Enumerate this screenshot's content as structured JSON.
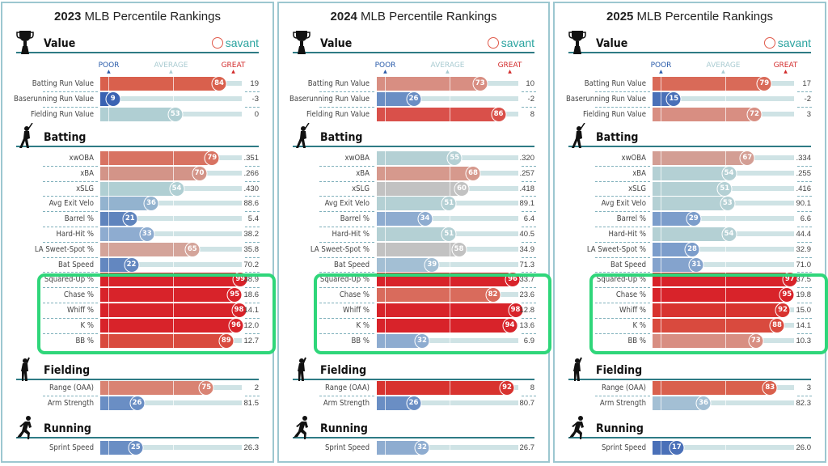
{
  "chart_data": [
    {
      "type": "bar",
      "title_year": "2023",
      "title_rest": "MLB Percentile Rankings",
      "xlim": [
        0,
        100
      ],
      "legend": {
        "poor": "POOR",
        "average": "AVERAGE",
        "great": "GREAT"
      },
      "logo": "savant",
      "sections": [
        {
          "name": "Value",
          "icon": "trophy-icon",
          "rows": [
            {
              "label": "Batting Run Value",
              "percentile": 84,
              "value": "19",
              "color": "#d9604d"
            },
            {
              "label": "Baserunning Run Value",
              "percentile": 9,
              "value": "-3",
              "color": "#3a62b2"
            },
            {
              "label": "Fielding Run Value",
              "percentile": 53,
              "value": "0",
              "color": "#b0cfd3"
            }
          ]
        },
        {
          "name": "Batting",
          "icon": "batter-icon",
          "rows": [
            {
              "label": "xwOBA",
              "percentile": 79,
              "value": ".351",
              "color": "#d87362"
            },
            {
              "label": "xBA",
              "percentile": 70,
              "value": ".266",
              "color": "#d39488"
            },
            {
              "label": "xSLG",
              "percentile": 54,
              "value": ".430",
              "color": "#b0cfd3"
            },
            {
              "label": "Avg Exit Velo",
              "percentile": 36,
              "value": "88.6",
              "color": "#93b3cf"
            },
            {
              "label": "Barrel %",
              "percentile": 21,
              "value": "5.4",
              "color": "#5f84bd"
            },
            {
              "label": "Hard-Hit %",
              "percentile": 33,
              "value": "38.2",
              "color": "#8eacd0"
            },
            {
              "label": "LA Sweet-Spot %",
              "percentile": 65,
              "value": "35.8",
              "color": "#d4a49a"
            },
            {
              "label": "Bat Speed",
              "percentile": 22,
              "value": "70.2",
              "color": "#6387c0"
            },
            {
              "label": "Squared-Up %",
              "percentile": 99,
              "value": "38.9",
              "color": "#d8232a"
            },
            {
              "label": "Chase %",
              "percentile": 95,
              "value": "18.6",
              "color": "#d8232a"
            },
            {
              "label": "Whiff %",
              "percentile": 98,
              "value": "14.1",
              "color": "#d8232a"
            },
            {
              "label": "K %",
              "percentile": 96,
              "value": "12.0",
              "color": "#d8232a"
            },
            {
              "label": "BB %",
              "percentile": 89,
              "value": "12.7",
              "color": "#d94a3e"
            }
          ]
        },
        {
          "name": "Fielding",
          "icon": "fielder-icon",
          "rows": [
            {
              "label": "Range (OAA)",
              "percentile": 75,
              "value": "2",
              "color": "#d98373"
            },
            {
              "label": "Arm Strength",
              "percentile": 26,
              "value": "81.5",
              "color": "#6a8ec4"
            }
          ]
        },
        {
          "name": "Running",
          "icon": "runner-icon",
          "rows": [
            {
              "label": "Sprint Speed",
              "percentile": 25,
              "value": "26.3",
              "color": "#6a8ec4"
            }
          ]
        }
      ]
    },
    {
      "type": "bar",
      "title_year": "2024",
      "title_rest": "MLB Percentile Rankings",
      "xlim": [
        0,
        100
      ],
      "legend": {
        "poor": "POOR",
        "average": "AVERAGE",
        "great": "GREAT"
      },
      "logo": "savant",
      "sections": [
        {
          "name": "Value",
          "icon": "trophy-icon",
          "rows": [
            {
              "label": "Batting Run Value",
              "percentile": 73,
              "value": "10",
              "color": "#d88e82"
            },
            {
              "label": "Baserunning Run Value",
              "percentile": 26,
              "value": "-2",
              "color": "#6a8ec4"
            },
            {
              "label": "Fielding Run Value",
              "percentile": 86,
              "value": "8",
              "color": "#d9504a"
            }
          ]
        },
        {
          "name": "Batting",
          "icon": "batter-icon",
          "rows": [
            {
              "label": "xwOBA",
              "percentile": 55,
              "value": ".320",
              "color": "#b4d0d4"
            },
            {
              "label": "xBA",
              "percentile": 68,
              "value": ".257",
              "color": "#d6998d"
            },
            {
              "label": "xSLG",
              "percentile": 60,
              "value": ".418",
              "color": "#c2c2c2"
            },
            {
              "label": "Avg Exit Velo",
              "percentile": 51,
              "value": "89.1",
              "color": "#b4d0d4"
            },
            {
              "label": "Barrel %",
              "percentile": 34,
              "value": "6.4",
              "color": "#8eacd0"
            },
            {
              "label": "Hard-Hit %",
              "percentile": 51,
              "value": "40.5",
              "color": "#b4d0d4"
            },
            {
              "label": "LA Sweet-Spot %",
              "percentile": 58,
              "value": "34.9",
              "color": "#c2c2c2"
            },
            {
              "label": "Bat Speed",
              "percentile": 39,
              "value": "71.3",
              "color": "#a3bfd4"
            },
            {
              "label": "Squared-Up %",
              "percentile": 96,
              "value": "33.7",
              "color": "#d8232a"
            },
            {
              "label": "Chase %",
              "percentile": 82,
              "value": "23.6",
              "color": "#d96b5c"
            },
            {
              "label": "Whiff %",
              "percentile": 98,
              "value": "12.8",
              "color": "#d8232a"
            },
            {
              "label": "K %",
              "percentile": 94,
              "value": "13.6",
              "color": "#d8232a"
            },
            {
              "label": "BB %",
              "percentile": 32,
              "value": "6.9",
              "color": "#8eacd0"
            }
          ]
        },
        {
          "name": "Fielding",
          "icon": "fielder-icon",
          "rows": [
            {
              "label": "Range (OAA)",
              "percentile": 92,
              "value": "8",
              "color": "#d8332f"
            },
            {
              "label": "Arm Strength",
              "percentile": 26,
              "value": "80.7",
              "color": "#6a8ec4"
            }
          ]
        },
        {
          "name": "Running",
          "icon": "runner-icon",
          "rows": [
            {
              "label": "Sprint Speed",
              "percentile": 32,
              "value": "26.7",
              "color": "#8eacd0"
            }
          ]
        }
      ]
    },
    {
      "type": "bar",
      "title_year": "2025",
      "title_rest": "MLB Percentile Rankings",
      "xlim": [
        0,
        100
      ],
      "legend": {
        "poor": "POOR",
        "average": "AVERAGE",
        "great": "GREAT"
      },
      "logo": "savant",
      "sections": [
        {
          "name": "Value",
          "icon": "trophy-icon",
          "rows": [
            {
              "label": "Batting Run Value",
              "percentile": 79,
              "value": "17",
              "color": "#d96a58"
            },
            {
              "label": "Baserunning Run Value",
              "percentile": 15,
              "value": "-2",
              "color": "#4a70b8"
            },
            {
              "label": "Fielding Run Value",
              "percentile": 72,
              "value": "3",
              "color": "#d88e82"
            }
          ]
        },
        {
          "name": "Batting",
          "icon": "batter-icon",
          "rows": [
            {
              "label": "xwOBA",
              "percentile": 67,
              "value": ".334",
              "color": "#d39e94"
            },
            {
              "label": "xBA",
              "percentile": 54,
              "value": ".255",
              "color": "#b4d0d4"
            },
            {
              "label": "xSLG",
              "percentile": 51,
              "value": ".416",
              "color": "#b4d0d4"
            },
            {
              "label": "Avg Exit Velo",
              "percentile": 53,
              "value": "90.1",
              "color": "#b4d0d4"
            },
            {
              "label": "Barrel %",
              "percentile": 29,
              "value": "6.6",
              "color": "#7c9dcb"
            },
            {
              "label": "Hard-Hit %",
              "percentile": 54,
              "value": "44.4",
              "color": "#b4d0d4"
            },
            {
              "label": "LA Sweet-Spot %",
              "percentile": 28,
              "value": "32.9",
              "color": "#7c9dcb"
            },
            {
              "label": "Bat Speed",
              "percentile": 31,
              "value": "71.0",
              "color": "#84a3cd"
            },
            {
              "label": "Squared-Up %",
              "percentile": 97,
              "value": "37.5",
              "color": "#d8232a"
            },
            {
              "label": "Chase %",
              "percentile": 95,
              "value": "19.8",
              "color": "#d8232a"
            },
            {
              "label": "Whiff %",
              "percentile": 92,
              "value": "15.0",
              "color": "#d8332f"
            },
            {
              "label": "K %",
              "percentile": 88,
              "value": "14.1",
              "color": "#d94a3e"
            },
            {
              "label": "BB %",
              "percentile": 73,
              "value": "10.3",
              "color": "#d88e82"
            }
          ]
        },
        {
          "name": "Fielding",
          "icon": "fielder-icon",
          "rows": [
            {
              "label": "Range (OAA)",
              "percentile": 83,
              "value": "3",
              "color": "#d9604d"
            },
            {
              "label": "Arm Strength",
              "percentile": 36,
              "value": "82.3",
              "color": "#a3bfd4"
            }
          ]
        },
        {
          "name": "Running",
          "icon": "runner-icon",
          "rows": [
            {
              "label": "Sprint Speed",
              "percentile": 17,
              "value": "26.0",
              "color": "#4a70b8"
            }
          ]
        }
      ]
    }
  ]
}
